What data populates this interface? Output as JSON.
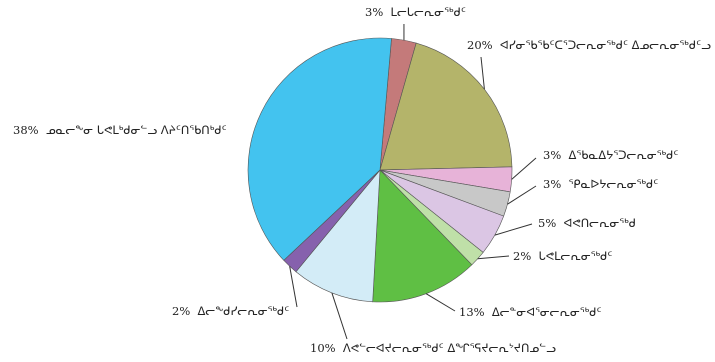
{
  "chart_data": {
    "type": "pie",
    "title": "",
    "slices": [
      {
        "label": "ᒪᓕᒐᓕᕆᓂᕐᒃᑯᑦ",
        "value": 3,
        "display": "3%",
        "color": "#c47a7a"
      },
      {
        "label": "ᐊᓯᓂᖃᖃᑦᑕᕐᑐᓕᕆᓂᕐᒃᑯᑦ ᐃᓄᓕᕆᓂᕐᒃᑯᑦᓗ",
        "value": 20,
        "display": "20%",
        "color": "#b4b46a"
      },
      {
        "label": "ᐃᖃᓇᐃᔭᕐᑐᓕᕆᓂᕐᒃᑯᑦ",
        "value": 3,
        "display": "3%",
        "color": "#e7b3d8"
      },
      {
        "label": "ᕿᓇᐅᔭᓕᕆᓂᕐᒃᑯᑦ",
        "value": 3,
        "display": "3%",
        "color": "#c8c8c8"
      },
      {
        "label": "ᐊᕙᑎᓕᕆᓂᕐᒃᑯ",
        "value": 5,
        "display": "5%",
        "color": "#dbc6e4"
      },
      {
        "label": "ᒐᕙᒪᓕᕆᓂᕐᒃᑯᑦ",
        "value": 2,
        "display": "2%",
        "color": "#bfe0a8"
      },
      {
        "label": "ᐃᓕᓐᓂᐊᕐᓂᓕᕆᓂᕐᒃᑯᑦ",
        "value": 13,
        "display": "13%",
        "color": "#5fbf44"
      },
      {
        "label": "ᐱᕙᓪᓕᐊᔪᓕᕆᓂᕐᒃᑯᑦ ᐃᖏᕐᕋᔪᓕᕆᔾᔪᑎᓄᓪᓗ",
        "value": 10,
        "display": "10%",
        "color": "#d3ecf7"
      },
      {
        "label": "ᐃᓕᖕᑯᓯᓕᕆᓂᕐᒃᑯᑦ",
        "value": 2,
        "display": "2%",
        "color": "#8661ad"
      },
      {
        "label": "ᓄᓇᓕᖕᓂ ᒐᕙᒪᒃᑯᓂᓪᓗ ᐱᔨᑦᑎᖃᑎᒃᑯᑦ",
        "value": 38,
        "display": "38%",
        "color": "#43c3ef"
      }
    ]
  }
}
